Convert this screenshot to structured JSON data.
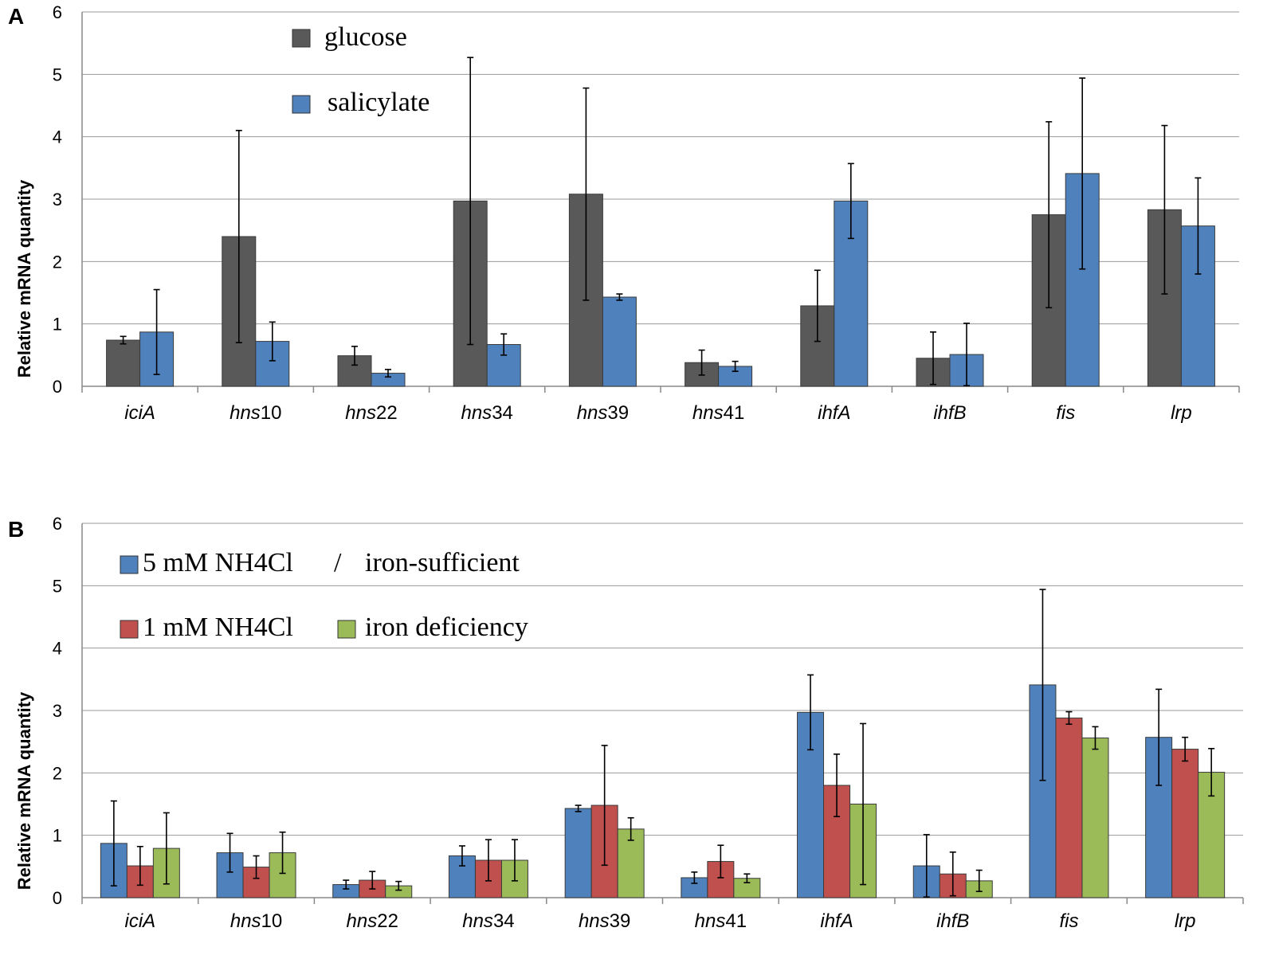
{
  "chart_data": [
    {
      "panel": "A",
      "type": "bar",
      "ylabel": "Relative mRNA quantity",
      "ylim": [
        0,
        6
      ],
      "yticks": [
        0,
        1,
        2,
        3,
        4,
        5,
        6
      ],
      "categories": [
        {
          "name": "iciA",
          "suffix": ""
        },
        {
          "name": "hns",
          "suffix": "10"
        },
        {
          "name": "hns",
          "suffix": "22"
        },
        {
          "name": "hns",
          "suffix": "34"
        },
        {
          "name": "hns",
          "suffix": "39"
        },
        {
          "name": "hns",
          "suffix": "41"
        },
        {
          "name": "ihfA",
          "suffix": ""
        },
        {
          "name": "ihfB",
          "suffix": ""
        },
        {
          "name": "fis",
          "suffix": ""
        },
        {
          "name": "lrp",
          "suffix": ""
        }
      ],
      "legend": [
        {
          "label": "glucose",
          "color": "#595959"
        },
        {
          "label": "salicylate",
          "color": "#4f81bd"
        }
      ],
      "series": [
        {
          "name": "glucose",
          "color": "#595959",
          "values": [
            0.74,
            2.4,
            0.49,
            2.97,
            3.08,
            0.38,
            1.29,
            0.45,
            2.75,
            2.83
          ],
          "errors": [
            0.06,
            1.7,
            0.15,
            2.3,
            1.7,
            0.2,
            0.57,
            0.42,
            1.49,
            1.35
          ]
        },
        {
          "name": "salicylate",
          "color": "#4f81bd",
          "values": [
            0.87,
            0.72,
            0.21,
            0.67,
            1.43,
            0.32,
            2.97,
            0.51,
            3.41,
            2.57
          ],
          "errors": [
            0.68,
            0.31,
            0.06,
            0.17,
            0.05,
            0.08,
            0.6,
            0.5,
            1.53,
            0.77
          ]
        }
      ]
    },
    {
      "panel": "B",
      "type": "bar",
      "ylabel": "Relative mRNA quantity",
      "ylim": [
        0,
        6
      ],
      "yticks": [
        0,
        1,
        2,
        3,
        4,
        5,
        6
      ],
      "categories": [
        {
          "name": "iciA",
          "suffix": ""
        },
        {
          "name": "hns",
          "suffix": "10"
        },
        {
          "name": "hns",
          "suffix": "22"
        },
        {
          "name": "hns",
          "suffix": "34"
        },
        {
          "name": "hns",
          "suffix": "39"
        },
        {
          "name": "hns",
          "suffix": "41"
        },
        {
          "name": "ihfA",
          "suffix": ""
        },
        {
          "name": "ihfB",
          "suffix": ""
        },
        {
          "name": "fis",
          "suffix": ""
        },
        {
          "name": "lrp",
          "suffix": ""
        }
      ],
      "legend": [
        {
          "label": "5 mM NH4Cl",
          "color": "#4f81bd"
        },
        {
          "label": "/",
          "color": ""
        },
        {
          "label": "iron-sufficient",
          "color": ""
        },
        {
          "label": "1 mM NH4Cl",
          "color": "#c0504d"
        },
        {
          "label": "iron deficiency",
          "color": "#9bbb59"
        }
      ],
      "series": [
        {
          "name": "5 mM NH4Cl / iron-sufficient",
          "color": "#4f81bd",
          "values": [
            0.87,
            0.72,
            0.21,
            0.67,
            1.43,
            0.32,
            2.97,
            0.51,
            3.41,
            2.57
          ],
          "errors": [
            0.68,
            0.31,
            0.07,
            0.16,
            0.05,
            0.09,
            0.6,
            0.5,
            1.53,
            0.77
          ]
        },
        {
          "name": "1 mM NH4Cl",
          "color": "#c0504d",
          "values": [
            0.51,
            0.49,
            0.28,
            0.6,
            1.48,
            0.58,
            1.8,
            0.38,
            2.88,
            2.38
          ],
          "errors": [
            0.31,
            0.18,
            0.14,
            0.33,
            0.96,
            0.26,
            0.5,
            0.35,
            0.1,
            0.19
          ]
        },
        {
          "name": "iron deficiency",
          "color": "#9bbb59",
          "values": [
            0.79,
            0.72,
            0.19,
            0.6,
            1.1,
            0.31,
            1.5,
            0.27,
            2.56,
            2.01
          ],
          "errors": [
            0.57,
            0.33,
            0.07,
            0.33,
            0.18,
            0.07,
            1.29,
            0.17,
            0.18,
            0.38
          ]
        }
      ]
    }
  ]
}
